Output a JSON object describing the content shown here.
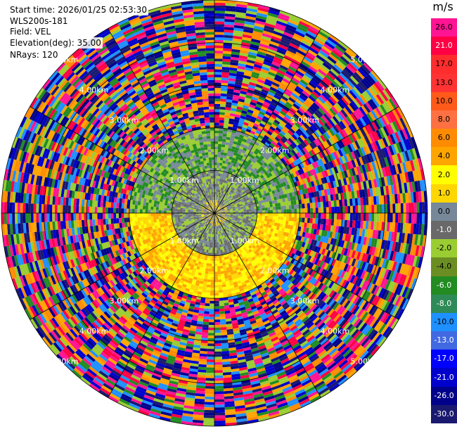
{
  "header": {
    "start_time": "Start time: 2026/01/25 02:53:30",
    "station": "WLS200s-181",
    "field": "Field: VEL",
    "elevation": "Elevation(deg): 35.00",
    "nrays": "NRays: 120"
  },
  "chart_data": {
    "type": "heatmap",
    "projection": "polar-ppi",
    "nrays": 120,
    "elevation_deg": 35.0,
    "field": "VEL",
    "units": "m/s",
    "range_rings": [
      {
        "label": "1.00km",
        "km": 1.0
      },
      {
        "label": "2.00km",
        "km": 2.0
      },
      {
        "label": "3.00km",
        "km": 3.0
      },
      {
        "label": "4.00km",
        "km": 4.0
      },
      {
        "label": "5.00km",
        "km": 5.0
      }
    ],
    "max_range_km": 5.0,
    "colorbar": {
      "title": "m/s",
      "ticks": [
        "26.0",
        "21.0",
        "17.0",
        "13.0",
        "10.0",
        "8.0",
        "6.0",
        "4.0",
        "2.0",
        "1.0",
        "0.0",
        "-1.0",
        "-2.0",
        "-4.0",
        "-6.0",
        "-8.0",
        "-10.0",
        "-13.0",
        "-17.0",
        "-21.0",
        "-26.0",
        "-30.0"
      ],
      "colors": [
        "#ff1493",
        "#ff0044",
        "#ff2d2d",
        "#ff3333",
        "#ff5a1a",
        "#ff7043",
        "#ff8c00",
        "#ffa500",
        "#ffff00",
        "#ffd700",
        "#778899",
        "#696969",
        "#9acd32",
        "#6b8e23",
        "#228b22",
        "#2e8b57",
        "#1e90ff",
        "#4169e1",
        "#0000ff",
        "#0000cd",
        "#00008b",
        "#191970"
      ]
    },
    "regions": [
      {
        "range_km": [
          0.0,
          0.3
        ],
        "description": "near-zero core",
        "colors": [
          "#778899",
          "#ffd700",
          "#696969"
        ]
      },
      {
        "range_km": [
          0.3,
          1.0
        ],
        "sector": "north",
        "colors": [
          "#778899",
          "#9acd32",
          "#696969"
        ]
      },
      {
        "range_km": [
          0.3,
          1.0
        ],
        "sector": "south",
        "colors": [
          "#696969",
          "#778899",
          "#9acd32"
        ]
      },
      {
        "range_km": [
          1.0,
          2.0
        ],
        "sector": "north",
        "colors": [
          "#9acd32",
          "#778899",
          "#228b22"
        ]
      },
      {
        "range_km": [
          1.0,
          2.0
        ],
        "sector": "south",
        "colors": [
          "#ffff00",
          "#ffd700",
          "#ffa500"
        ]
      },
      {
        "range_km": [
          2.0,
          5.0
        ],
        "description": "noise",
        "colors": [
          "#ff1493",
          "#00008b",
          "#ff0044",
          "#0000cd",
          "#ffa500",
          "#9acd32",
          "#1e90ff",
          "#ff8c00",
          "#228b22",
          "#191970"
        ]
      }
    ]
  }
}
